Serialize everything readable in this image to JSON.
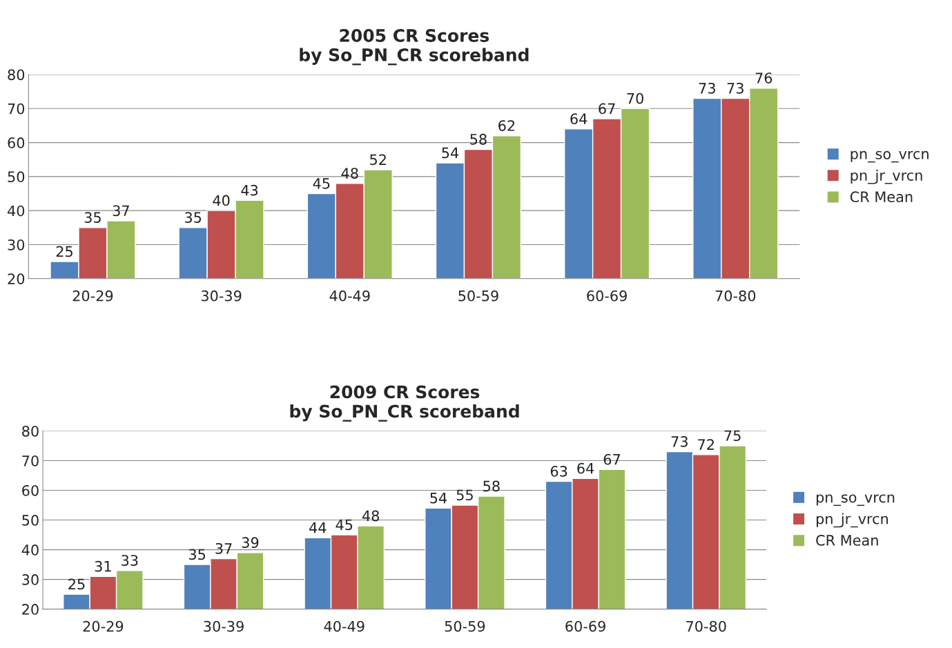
{
  "chart_data": [
    {
      "type": "bar",
      "title": "2005 CR Scores\nby So_PN_CR scoreband",
      "categories": [
        "20-29",
        "30-39",
        "40-49",
        "50-59",
        "60-69",
        "70-80"
      ],
      "series": [
        {
          "name": "pn_so_vrcn",
          "color": "#4f81bd",
          "values": [
            25,
            35,
            45,
            54,
            64,
            73
          ]
        },
        {
          "name": "pn_jr_vrcn",
          "color": "#c0504d",
          "values": [
            35,
            40,
            48,
            58,
            67,
            73
          ]
        },
        {
          "name": "CR Mean",
          "color": "#9bbb59",
          "values": [
            37,
            43,
            52,
            62,
            70,
            76
          ]
        }
      ],
      "ylim": [
        20,
        80
      ],
      "yticks": [
        20,
        30,
        40,
        50,
        60,
        70,
        80
      ],
      "grid": "y",
      "legend": "right",
      "data_labels": true
    },
    {
      "type": "bar",
      "title": "2009 CR Scores\nby So_PN_CR scoreband",
      "categories": [
        "20-29",
        "30-39",
        "40-49",
        "50-59",
        "60-69",
        "70-80"
      ],
      "series": [
        {
          "name": "pn_so_vrcn",
          "color": "#4f81bd",
          "values": [
            25,
            35,
            44,
            54,
            63,
            73
          ]
        },
        {
          "name": "pn_jr_vrcn",
          "color": "#c0504d",
          "values": [
            31,
            37,
            45,
            55,
            64,
            72
          ]
        },
        {
          "name": "CR Mean",
          "color": "#9bbb59",
          "values": [
            33,
            39,
            48,
            58,
            67,
            75
          ]
        }
      ],
      "ylim": [
        20,
        80
      ],
      "yticks": [
        20,
        30,
        40,
        50,
        60,
        70,
        80
      ],
      "grid": "y",
      "legend": "right",
      "data_labels": true
    }
  ]
}
